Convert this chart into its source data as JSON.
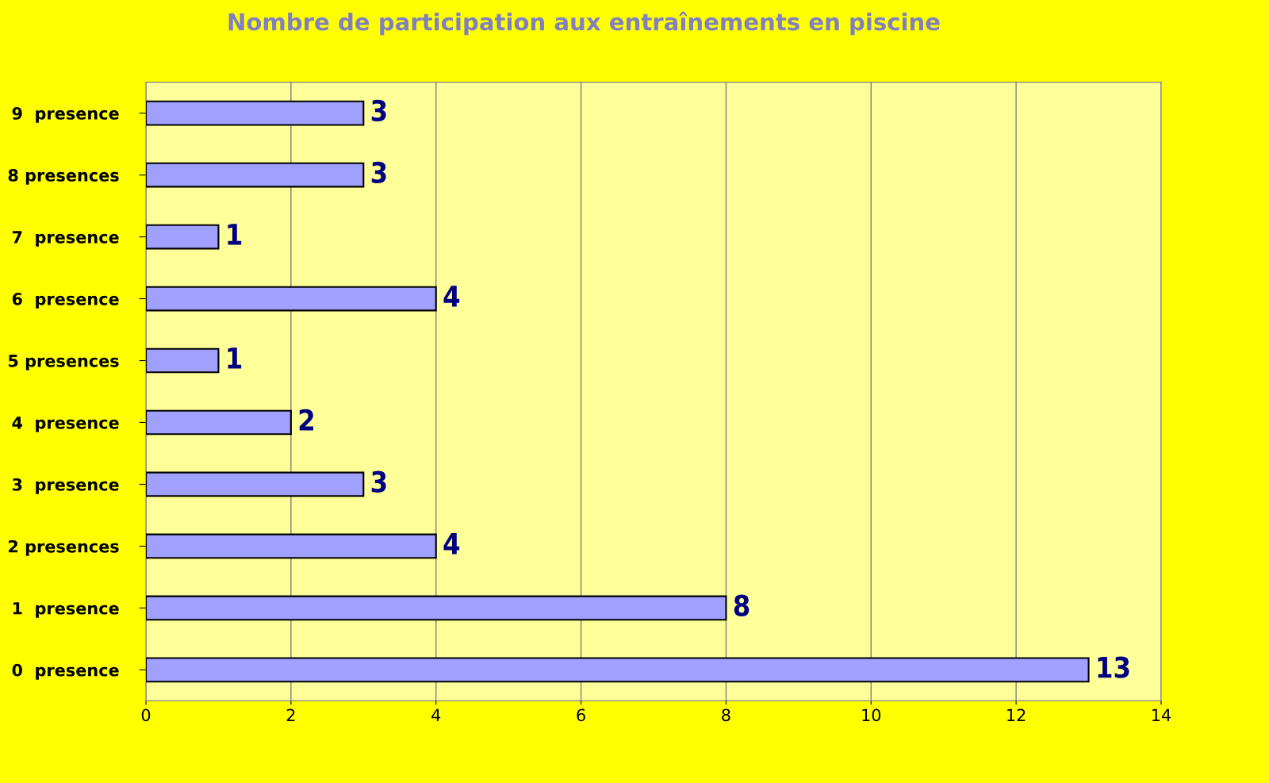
{
  "chart_data": {
    "type": "bar",
    "orientation": "horizontal",
    "title": "Nombre de participation aux entraînements en piscine",
    "categories": [
      "9  presence",
      "8 presences",
      "7  presence",
      "6  presence",
      "5 presences",
      "4  presence",
      "3  presence",
      "2 presences",
      "1  presence",
      "0  presence"
    ],
    "values": [
      3,
      3,
      1,
      4,
      1,
      2,
      3,
      4,
      8,
      13
    ],
    "color": "#a0a0ff",
    "xlim": [
      0,
      14
    ],
    "xticks": [
      0,
      2,
      4,
      6,
      8,
      10,
      12,
      14
    ],
    "grid": "x",
    "data_labels": true
  }
}
